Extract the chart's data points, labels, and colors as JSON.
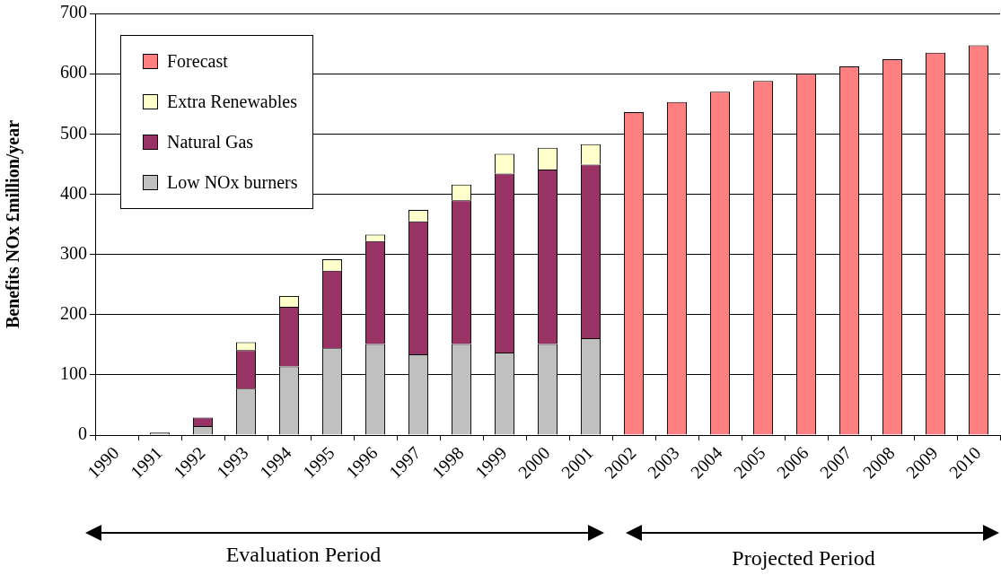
{
  "chart_data": {
    "type": "bar",
    "ylabel": "Benefits NOx £million/year",
    "categories": [
      "1990",
      "1991",
      "1992",
      "1993",
      "1994",
      "1995",
      "1996",
      "1997",
      "1998",
      "1999",
      "2000",
      "2001",
      "2002",
      "2003",
      "2004",
      "2005",
      "2006",
      "2007",
      "2008",
      "2009",
      "2010"
    ],
    "stacked": true,
    "series": [
      {
        "name": "Low NOx burners",
        "color": "#c0c0c0",
        "values": [
          null,
          4,
          15,
          77,
          114,
          144,
          151,
          134,
          151,
          137,
          151,
          161,
          null,
          null,
          null,
          null,
          null,
          null,
          null,
          null,
          null
        ]
      },
      {
        "name": "Natural Gas",
        "color": "#993366",
        "values": [
          null,
          null,
          14,
          64,
          99,
          129,
          171,
          221,
          239,
          297,
          290,
          288,
          null,
          null,
          null,
          null,
          null,
          null,
          null,
          null,
          null
        ]
      },
      {
        "name": "Extra Renewables",
        "color": "#ffffcc",
        "values": [
          null,
          null,
          null,
          13,
          18,
          19,
          11,
          19,
          26,
          33,
          36,
          34,
          null,
          null,
          null,
          null,
          null,
          null,
          null,
          null,
          null
        ]
      },
      {
        "name": "Forecast",
        "color": "#ff8080",
        "values": [
          null,
          null,
          null,
          null,
          null,
          null,
          null,
          null,
          null,
          null,
          null,
          null,
          536,
          553,
          570,
          588,
          600,
          612,
          624,
          635,
          647
        ]
      }
    ],
    "ylim": [
      0,
      700
    ],
    "yticks": [
      0,
      100,
      200,
      300,
      400,
      500,
      600,
      700
    ],
    "grid": "y",
    "legend": "top left",
    "annotations": [
      "Evaluation Period",
      "Projected Period"
    ]
  }
}
